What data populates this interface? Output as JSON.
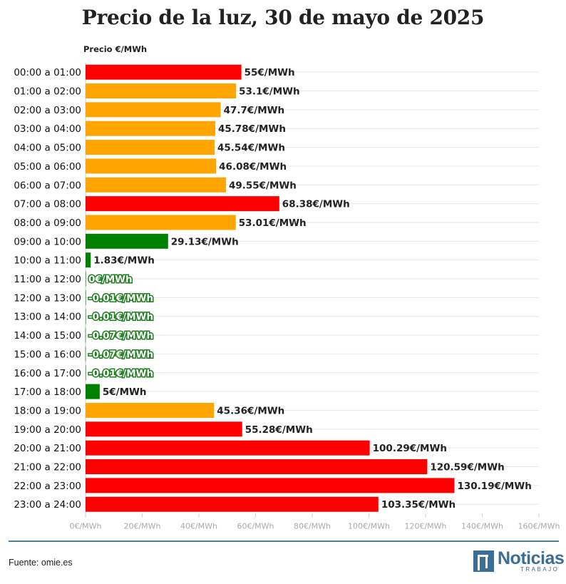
{
  "title": "Precio de la luz, 30 de mayo de 2025",
  "source": "Fuente: omie.es",
  "logo": {
    "word": "Noticias",
    "sub": "TRABAJO"
  },
  "colors": {
    "high": "#ff0000",
    "mid": "#ffa500",
    "low": "#008000",
    "grid": "#e6e6e6",
    "rule": "#4a7fa0"
  },
  "chart_data": {
    "type": "bar",
    "orientation": "horizontal",
    "title": "Precio de la luz, 30 de mayo de 2025",
    "xlabel": "",
    "ylabel": "Precio €/MWh",
    "xlim": [
      0,
      160
    ],
    "ticks": [
      0,
      20,
      40,
      60,
      80,
      100,
      120,
      140,
      160
    ],
    "tick_labels": [
      "0€/MWh",
      "20€/MWh",
      "40€/MWh",
      "60€/MWh",
      "80€/MWh",
      "100€/MWh",
      "120€/MWh",
      "140€/MWh",
      "160€/MWh"
    ],
    "categories": [
      "00:00 a 01:00",
      "01:00 a 02:00",
      "02:00 a 03:00",
      "03:00 a 04:00",
      "04:00 a 05:00",
      "05:00 a 06:00",
      "06:00 a 07:00",
      "07:00 a 08:00",
      "08:00 a 09:00",
      "09:00 a 10:00",
      "10:00 a 11:00",
      "11:00 a 12:00",
      "12:00 a 13:00",
      "13:00 a 14:00",
      "14:00 a 15:00",
      "15:00 a 16:00",
      "16:00 a 17:00",
      "17:00 a 18:00",
      "18:00 a 19:00",
      "19:00 a 20:00",
      "20:00 a 21:00",
      "21:00 a 22:00",
      "22:00 a 23:00",
      "23:00 a 24:00"
    ],
    "values": [
      55,
      53.1,
      47.7,
      45.78,
      45.54,
      46.08,
      49.55,
      68.38,
      53.01,
      29.13,
      1.83,
      0,
      -0.01,
      -0.01,
      -0.07,
      -0.07,
      -0.01,
      5,
      45.36,
      55.28,
      100.29,
      120.59,
      130.19,
      103.35
    ],
    "value_labels": [
      "55€/MWh",
      "53.1€/MWh",
      "47.7€/MWh",
      "45.78€/MWh",
      "45.54€/MWh",
      "46.08€/MWh",
      "49.55€/MWh",
      "68.38€/MWh",
      "53.01€/MWh",
      "29.13€/MWh",
      "1.83€/MWh",
      "0€/MWh",
      "-0.01€/MWh",
      "-0.01€/MWh",
      "-0.07€/MWh",
      "-0.07€/MWh",
      "-0.01€/MWh",
      "5€/MWh",
      "45.36€/MWh",
      "55.28€/MWh",
      "100.29€/MWh",
      "120.59€/MWh",
      "130.19€/MWh",
      "103.35€/MWh"
    ],
    "bar_colors": [
      "high",
      "mid",
      "mid",
      "mid",
      "mid",
      "mid",
      "mid",
      "high",
      "mid",
      "low",
      "low",
      "low",
      "low",
      "low",
      "low",
      "low",
      "low",
      "low",
      "mid",
      "high",
      "high",
      "high",
      "high",
      "high"
    ]
  }
}
